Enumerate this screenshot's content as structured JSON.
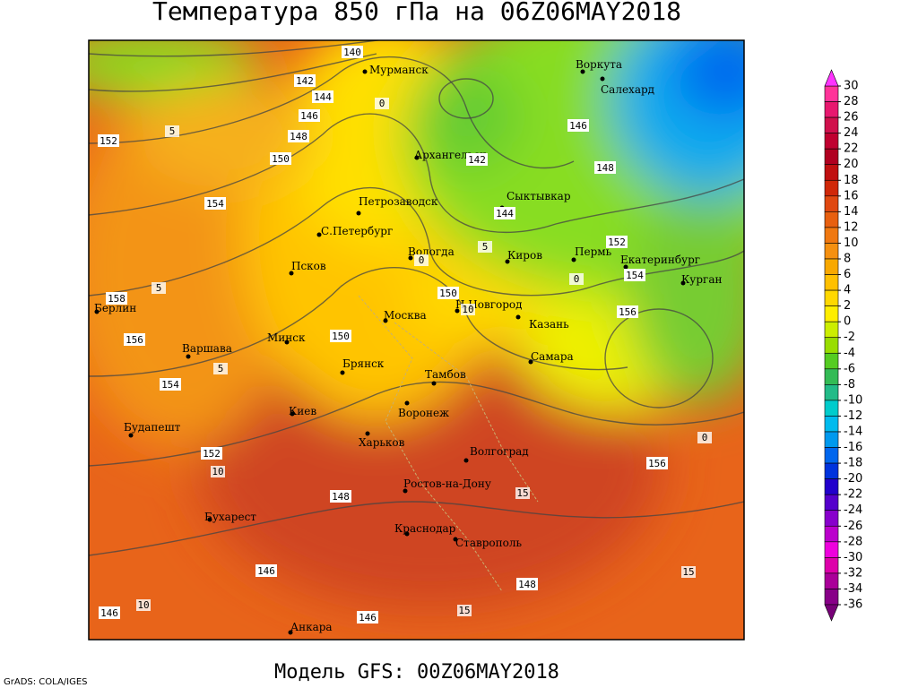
{
  "header": {
    "title": "Температура 850 гПа на 06Z06MAY2018"
  },
  "footer": {
    "model": "Модель GFS: 00Z06MAY2018",
    "credit": "GrADS: COLA/IGES"
  },
  "cities": [
    "Мурманск",
    "Воркута",
    "Салехард",
    "Архангельск",
    "Сыктывкар",
    "Петрозаводск",
    "С.Петербург",
    "Вологда",
    "Киров",
    "Пермь",
    "Екатеринбург",
    "Курган",
    "Псков",
    "Н.Новгород",
    "Москва",
    "Казань",
    "Берлин",
    "Варшава",
    "Минск",
    "Самара",
    "Брянск",
    "Тамбов",
    "Воронеж",
    "Киев",
    "Харьков",
    "Будапешт",
    "Волгоград",
    "Ростов-на-Дону",
    "Бухарест",
    "Краснодар",
    "Ставрополь",
    "Анкара"
  ],
  "height_labels": [
    140,
    142,
    144,
    146,
    148,
    150,
    152,
    154,
    156,
    154,
    152,
    150,
    150,
    148,
    146,
    146,
    146,
    148,
    144,
    142,
    152,
    154,
    156,
    156,
    148,
    146,
    158
  ],
  "temperature_labels": [
    0,
    5,
    5,
    0,
    0,
    5,
    5,
    10,
    10,
    15,
    0,
    10,
    15,
    15
  ],
  "colorbar": {
    "levels": [
      30,
      28,
      26,
      24,
      22,
      20,
      18,
      16,
      14,
      12,
      10,
      8,
      6,
      4,
      2,
      0,
      -2,
      -4,
      -6,
      -8,
      -10,
      -12,
      -14,
      -16,
      -18,
      -20,
      -22,
      -24,
      -26,
      -28,
      -30,
      -32,
      -34,
      -36
    ],
    "colors": [
      "#ff3399",
      "#e8186f",
      "#d0104c",
      "#c00030",
      "#b00020",
      "#c01010",
      "#d02808",
      "#e04810",
      "#e86010",
      "#f07810",
      "#f59010",
      "#f8a800",
      "#ffc000",
      "#ffd800",
      "#ffee00",
      "#ccee00",
      "#99dd00",
      "#55cc22",
      "#33bb55",
      "#22bb88",
      "#00cccc",
      "#00bbee",
      "#0099ee",
      "#0066ee",
      "#0033dd",
      "#2200cc",
      "#5500cc",
      "#8800cc",
      "#bb00cc",
      "#ee00dd",
      "#dd00aa",
      "#aa0099",
      "#880088"
    ],
    "over_color": "#ff33ff",
    "under_color": "#770077"
  }
}
